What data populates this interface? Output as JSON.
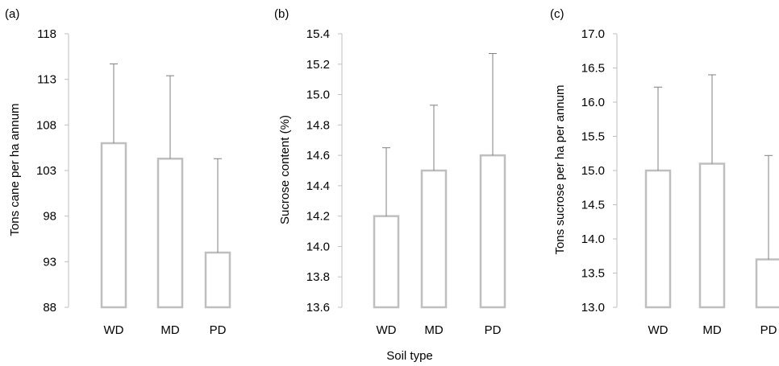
{
  "xlabel": "Soil type",
  "chart_data": [
    {
      "panel_label": "(a)",
      "type": "bar",
      "error_bars": true,
      "categories": [
        "WD",
        "MD",
        "PD"
      ],
      "values": [
        106.0,
        104.3,
        94.0
      ],
      "error_upper": [
        114.7,
        113.4,
        104.3
      ],
      "ylabel": "Tons cane per ha annum",
      "ylim": [
        88,
        118
      ],
      "yticks": [
        "118",
        "113",
        "108",
        "103",
        "98",
        "93",
        "88"
      ],
      "bar_color": "#bfbfbf",
      "error_color": "#808080"
    },
    {
      "panel_label": "(b)",
      "type": "bar",
      "error_bars": true,
      "categories": [
        "WD",
        "MD",
        "PD"
      ],
      "values": [
        14.2,
        14.5,
        14.6
      ],
      "error_upper": [
        14.65,
        14.93,
        15.27
      ],
      "ylabel": "Sucrose content (%)",
      "ylim": [
        13.6,
        15.4
      ],
      "yticks": [
        "15.4",
        "15.2",
        "15.0",
        "14.8",
        "14.6",
        "14.4",
        "14.2",
        "14.0",
        "13.8",
        "13.6"
      ],
      "bar_color": "#bfbfbf",
      "error_color": "#808080"
    },
    {
      "panel_label": "(c)",
      "type": "bar",
      "error_bars": true,
      "categories": [
        "WD",
        "MD",
        "PD"
      ],
      "values": [
        15.0,
        15.1,
        13.7
      ],
      "error_upper": [
        16.22,
        16.4,
        15.22
      ],
      "ylabel": "Tons sucrose per ha per annum",
      "ylim": [
        13.0,
        17.0
      ],
      "yticks": [
        "17.0",
        "16.5",
        "16.0",
        "15.5",
        "15.0",
        "14.5",
        "14.0",
        "13.5",
        "13.0"
      ],
      "bar_color": "#bfbfbf",
      "error_color": "#808080"
    }
  ]
}
